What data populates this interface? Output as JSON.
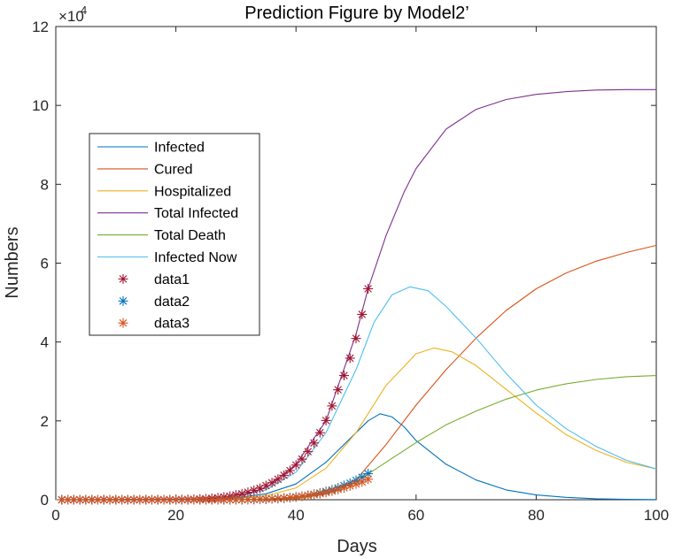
{
  "chart_data": {
    "type": "line",
    "title": "Prediction Figure by Model2’",
    "xlabel": "Days",
    "ylabel": "Numbers",
    "xlim": [
      0,
      100
    ],
    "ylim": [
      0,
      120000
    ],
    "x_ticks": [
      0,
      20,
      40,
      60,
      80,
      100
    ],
    "y_ticks": [
      0,
      2,
      4,
      6,
      8,
      10,
      12
    ],
    "y_multiplier_base": "×10",
    "y_multiplier_exp": "4",
    "grid": false,
    "legend_placement": "middle-left",
    "series": [
      {
        "name": "Infected",
        "style": "line",
        "color": "#0072BD",
        "x": [
          0,
          20,
          25,
          30,
          35,
          40,
          45,
          50,
          52,
          54,
          56,
          58,
          60,
          65,
          70,
          75,
          80,
          85,
          90,
          95,
          100
        ],
        "y": [
          0,
          0,
          150,
          500,
          1500,
          4000,
          9500,
          17000,
          20000,
          21800,
          21000,
          18500,
          15000,
          9000,
          5000,
          2500,
          1200,
          600,
          250,
          100,
          50
        ]
      },
      {
        "name": "Cured",
        "style": "line",
        "color": "#D95319",
        "x": [
          0,
          30,
          40,
          45,
          50,
          55,
          60,
          65,
          70,
          75,
          80,
          85,
          90,
          95,
          100
        ],
        "y": [
          0,
          0,
          300,
          1500,
          5000,
          14000,
          24000,
          33000,
          41000,
          48000,
          53500,
          57500,
          60500,
          62700,
          64500
        ]
      },
      {
        "name": "Hospitalized",
        "style": "line",
        "color": "#EDB120",
        "x": [
          0,
          25,
          30,
          35,
          40,
          45,
          50,
          55,
          60,
          63,
          66,
          70,
          75,
          80,
          85,
          90,
          95,
          100
        ],
        "y": [
          0,
          0,
          300,
          1000,
          3000,
          8000,
          17000,
          29000,
          37000,
          38500,
          37500,
          34000,
          28000,
          22000,
          16500,
          12500,
          9500,
          7800
        ]
      },
      {
        "name": "Total Infected",
        "style": "line",
        "color": "#7E2F8E",
        "x": [
          0,
          25,
          30,
          35,
          40,
          45,
          50,
          52,
          55,
          58,
          60,
          65,
          70,
          75,
          80,
          85,
          90,
          95,
          100
        ],
        "y": [
          0,
          200,
          700,
          3000,
          9000,
          20000,
          42000,
          53500,
          67000,
          78000,
          84000,
          94000,
          99000,
          101500,
          102800,
          103500,
          103900,
          104000,
          104000
        ]
      },
      {
        "name": "Total Death",
        "style": "line",
        "color": "#77AC30",
        "x": [
          0,
          30,
          40,
          45,
          50,
          55,
          60,
          65,
          70,
          75,
          80,
          85,
          90,
          95,
          100
        ],
        "y": [
          0,
          0,
          400,
          1600,
          4500,
          9500,
          14500,
          19000,
          22500,
          25500,
          27800,
          29400,
          30500,
          31200,
          31500
        ]
      },
      {
        "name": "Infected Now",
        "style": "line",
        "color": "#4DBEEE",
        "x": [
          0,
          20,
          25,
          30,
          35,
          40,
          45,
          50,
          53,
          56,
          59,
          62,
          65,
          70,
          75,
          80,
          85,
          90,
          95,
          100
        ],
        "y": [
          0,
          0,
          200,
          700,
          2500,
          7000,
          17000,
          33000,
          45000,
          52000,
          54000,
          53000,
          49000,
          41000,
          32000,
          24000,
          18000,
          13500,
          10000,
          7800
        ]
      },
      {
        "name": "data1",
        "style": "marker",
        "color": "#A2142F",
        "x": [
          1,
          2,
          3,
          4,
          5,
          6,
          7,
          8,
          9,
          10,
          11,
          12,
          13,
          14,
          15,
          16,
          17,
          18,
          19,
          20,
          21,
          22,
          23,
          24,
          25,
          26,
          27,
          28,
          29,
          30,
          31,
          32,
          33,
          34,
          35,
          36,
          37,
          38,
          39,
          40,
          41,
          42,
          43,
          44,
          45,
          46,
          47,
          48,
          49,
          50,
          51,
          52
        ],
        "y": [
          0,
          0,
          0,
          0,
          0,
          0,
          0,
          0,
          0,
          0,
          0,
          0,
          0,
          0,
          0,
          0,
          0,
          0,
          0,
          0,
          50,
          80,
          120,
          180,
          250,
          350,
          500,
          700,
          900,
          1200,
          1500,
          1900,
          2400,
          2900,
          3600,
          4300,
          5200,
          6200,
          7400,
          8800,
          10300,
          12200,
          14400,
          17000,
          20100,
          23800,
          27900,
          31500,
          35900,
          40900,
          47000,
          53500
        ]
      },
      {
        "name": "data2",
        "style": "marker",
        "color": "#0072BD",
        "x": [
          1,
          2,
          3,
          4,
          5,
          6,
          7,
          8,
          9,
          10,
          11,
          12,
          13,
          14,
          15,
          16,
          17,
          18,
          19,
          20,
          21,
          22,
          23,
          24,
          25,
          26,
          27,
          28,
          29,
          30,
          31,
          32,
          33,
          34,
          35,
          36,
          37,
          38,
          39,
          40,
          41,
          42,
          43,
          44,
          45,
          46,
          47,
          48,
          49,
          50,
          51,
          52
        ],
        "y": [
          0,
          0,
          0,
          0,
          0,
          0,
          0,
          0,
          0,
          0,
          0,
          0,
          0,
          0,
          0,
          0,
          0,
          0,
          0,
          0,
          0,
          0,
          0,
          0,
          0,
          0,
          0,
          0,
          0,
          0,
          20,
          40,
          60,
          100,
          150,
          220,
          300,
          400,
          520,
          700,
          900,
          1100,
          1400,
          1700,
          2100,
          2500,
          3000,
          3600,
          4200,
          4900,
          5700,
          6600
        ]
      },
      {
        "name": "data3",
        "style": "marker",
        "color": "#D95319",
        "x": [
          1,
          2,
          3,
          4,
          5,
          6,
          7,
          8,
          9,
          10,
          11,
          12,
          13,
          14,
          15,
          16,
          17,
          18,
          19,
          20,
          21,
          22,
          23,
          24,
          25,
          26,
          27,
          28,
          29,
          30,
          31,
          32,
          33,
          34,
          35,
          36,
          37,
          38,
          39,
          40,
          41,
          42,
          43,
          44,
          45,
          46,
          47,
          48,
          49,
          50,
          51,
          52
        ],
        "y": [
          0,
          0,
          0,
          0,
          0,
          0,
          0,
          0,
          0,
          0,
          0,
          0,
          0,
          0,
          0,
          0,
          0,
          0,
          0,
          0,
          0,
          0,
          0,
          0,
          0,
          0,
          0,
          0,
          0,
          0,
          30,
          50,
          80,
          120,
          170,
          240,
          320,
          420,
          550,
          700,
          880,
          1080,
          1300,
          1550,
          1850,
          2200,
          2600,
          3000,
          3500,
          4000,
          4500,
          5200
        ]
      }
    ]
  }
}
